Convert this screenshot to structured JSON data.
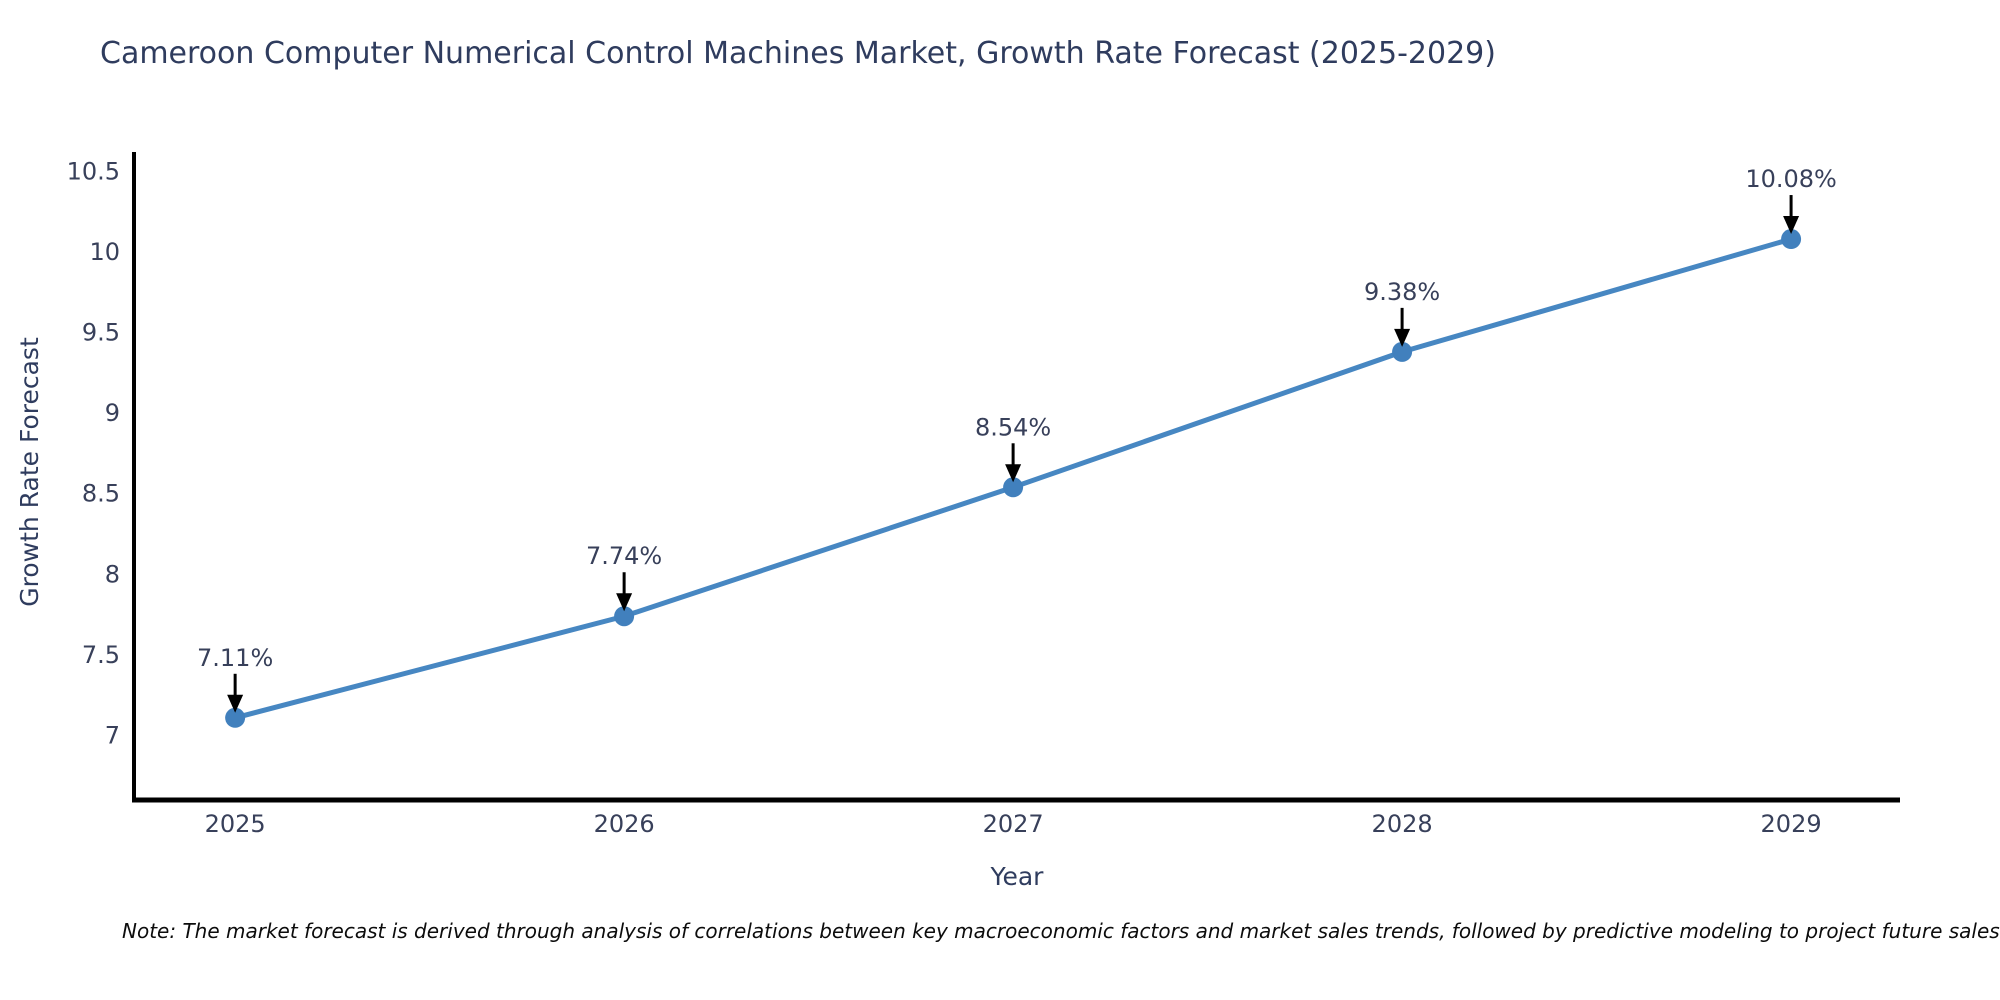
{
  "note": "Note: The market forecast is derived through analysis of correlations between key macroeconomic factors and market sales trends, followed by predictive modeling to project future sales",
  "chart_data": {
    "type": "line",
    "title": "Cameroon Computer Numerical Control Machines Market, Growth Rate Forecast (2025-2029)",
    "xlabel": "Year",
    "ylabel": "Growth Rate Forecast",
    "x": [
      2025,
      2026,
      2027,
      2028,
      2029
    ],
    "values": [
      7.11,
      7.74,
      8.54,
      9.38,
      10.08
    ],
    "point_labels": [
      "7.11%",
      "7.74%",
      "8.54%",
      "9.38%",
      "10.08%"
    ],
    "yticks": [
      7,
      7.5,
      8,
      8.5,
      9,
      9.5,
      10,
      10.5
    ],
    "xticks": [
      2025,
      2026,
      2027,
      2028,
      2029
    ],
    "ylim": [
      6.6,
      10.62
    ],
    "xlim": [
      2024.74,
      2029.28
    ],
    "grid": false,
    "legend": false,
    "line_color": "#4787c2",
    "marker_color": "#4180bd",
    "axis_color": "#000000",
    "annotation_arrow_color": "#000000",
    "text_color": "#2f3c5e"
  }
}
